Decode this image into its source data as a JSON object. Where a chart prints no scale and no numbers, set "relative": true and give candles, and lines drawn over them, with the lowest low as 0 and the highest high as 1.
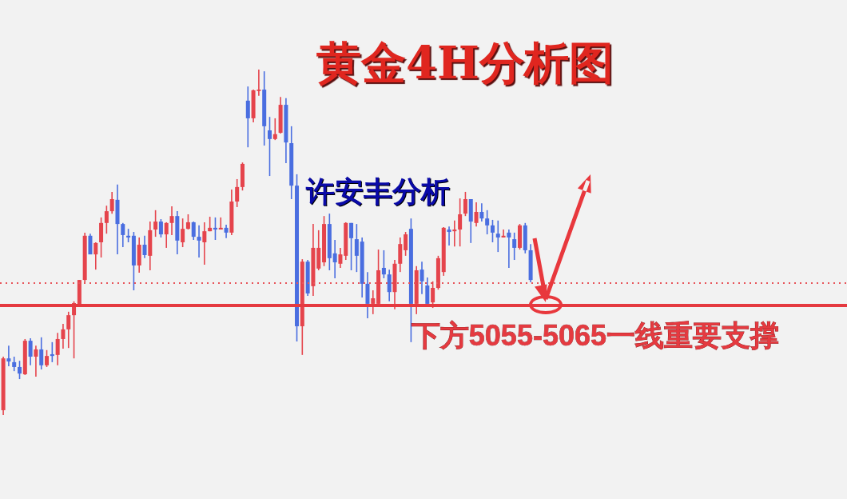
{
  "chart_data": {
    "type": "candlestick",
    "title": "黄金4H分析图",
    "annotations": [
      "许安丰分析"
    ],
    "relative": true,
    "categories": [
      null,
      null,
      null,
      null,
      null,
      null,
      null,
      null,
      null,
      null,
      null,
      null,
      null,
      null,
      null,
      null,
      null,
      null,
      null,
      null,
      null,
      null,
      null,
      null,
      null,
      null,
      null,
      null,
      null,
      null,
      null,
      null,
      null,
      null,
      null,
      null,
      null,
      null,
      null,
      null,
      null,
      null,
      null,
      null,
      null,
      null,
      null,
      null,
      null,
      null,
      null,
      null,
      null,
      null,
      null,
      null,
      null,
      null,
      null,
      null,
      null,
      null,
      null,
      null,
      null,
      null,
      null,
      null,
      null,
      null,
      null,
      null,
      null,
      null,
      null,
      null,
      null,
      null,
      null,
      null,
      null,
      null,
      null,
      null,
      null,
      null,
      null,
      null,
      null,
      null,
      null,
      null,
      null,
      null,
      null,
      null,
      null,
      null
    ],
    "ohlc": [
      [
        0.014,
        0.169,
        0,
        0.164
      ],
      [
        0.164,
        0.201,
        0.141,
        0.155
      ],
      [
        0.153,
        0.169,
        0.127,
        0.139
      ],
      [
        0.139,
        0.157,
        0.104,
        0.12
      ],
      [
        0.118,
        0.22,
        0.116,
        0.215
      ],
      [
        0.215,
        0.222,
        0.144,
        0.169
      ],
      [
        0.169,
        0.201,
        0.111,
        0.19
      ],
      [
        0.19,
        0.225,
        0.132,
        0.144
      ],
      [
        0.144,
        0.188,
        0.139,
        0.171
      ],
      [
        0.176,
        0.211,
        0.153,
        0.171
      ],
      [
        0.174,
        0.238,
        0.144,
        0.22
      ],
      [
        0.22,
        0.264,
        0.192,
        0.248
      ],
      [
        0.248,
        0.299,
        0.194,
        0.289
      ],
      [
        0.289,
        0.329,
        0.164,
        0.324
      ],
      [
        0.317,
        0.391,
        0.317,
        0.391
      ],
      [
        0.391,
        0.528,
        0.382,
        0.519
      ],
      [
        0.519,
        0.525,
        0.465,
        0.465
      ],
      [
        0.465,
        0.5,
        0.421,
        0.498
      ],
      [
        0.5,
        0.572,
        0.456,
        0.556
      ],
      [
        0.556,
        0.606,
        0.525,
        0.59
      ],
      [
        0.59,
        0.646,
        0.583,
        0.625
      ],
      [
        0.623,
        0.667,
        0.465,
        0.553
      ],
      [
        0.553,
        0.556,
        0.486,
        0.521
      ],
      [
        0.519,
        0.539,
        0.5,
        0.514
      ],
      [
        0.519,
        0.53,
        0.361,
        0.433
      ],
      [
        0.433,
        0.514,
        0.412,
        0.493
      ],
      [
        0.493,
        0.519,
        0.454,
        0.463
      ],
      [
        0.461,
        0.56,
        0.419,
        0.535
      ],
      [
        0.537,
        0.593,
        0.516,
        0.56
      ],
      [
        0.56,
        0.567,
        0.514,
        0.523
      ],
      [
        0.523,
        0.558,
        0.484,
        0.556
      ],
      [
        0.556,
        0.604,
        0.521,
        0.576
      ],
      [
        0.576,
        0.59,
        0.465,
        0.505
      ],
      [
        0.5,
        0.569,
        0.486,
        0.539
      ],
      [
        0.539,
        0.581,
        0.537,
        0.558
      ],
      [
        0.558,
        0.56,
        0.507,
        0.516
      ],
      [
        0.516,
        0.549,
        0.456,
        0.505
      ],
      [
        0.5,
        0.558,
        0.435,
        0.532
      ],
      [
        0.532,
        0.574,
        0.532,
        0.542
      ],
      [
        0.542,
        0.572,
        0.507,
        0.537
      ],
      [
        0.537,
        0.572,
        0.537,
        0.542
      ],
      [
        0.542,
        0.551,
        0.512,
        0.528
      ],
      [
        0.528,
        0.653,
        0.521,
        0.618
      ],
      [
        0.618,
        0.683,
        0.602,
        0.66
      ],
      [
        0.66,
        0.731,
        0.65,
        0.727
      ],
      [
        0.91,
        0.951,
        0.775,
        0.859
      ],
      [
        0.859,
        0.942,
        0.847,
        0.94
      ],
      [
        0.938,
        1,
        0.924,
        0.942
      ],
      [
        0.942,
        0.995,
        0.78,
        0.836
      ],
      [
        0.824,
        0.863,
        0.692,
        0.799
      ],
      [
        0.799,
        0.859,
        0.796,
        0.813
      ],
      [
        0.817,
        0.921,
        0.815,
        0.898
      ],
      [
        0.898,
        0.917,
        0.729,
        0.789
      ],
      [
        0.787,
        0.836,
        0.625,
        0.664
      ],
      [
        0.664,
        0.697,
        0.213,
        0.257
      ],
      [
        0.257,
        0.451,
        0.174,
        0.444
      ],
      [
        0.444,
        0.449,
        0.345,
        0.352
      ],
      [
        0.373,
        0.553,
        0.345,
        0.484
      ],
      [
        0.424,
        0.535,
        0.419,
        0.484
      ],
      [
        0.442,
        0.576,
        0.431,
        0.553
      ],
      [
        0.553,
        0.583,
        0.419,
        0.454
      ],
      [
        0.468,
        0.507,
        0.396,
        0.442
      ],
      [
        0.438,
        0.484,
        0.426,
        0.465
      ],
      [
        0.461,
        0.558,
        0.449,
        0.556
      ],
      [
        0.556,
        0.556,
        0.419,
        0.512
      ],
      [
        0.509,
        0.553,
        0.414,
        0.461
      ],
      [
        0.502,
        0.514,
        0.34,
        0.38
      ],
      [
        0.38,
        0.414,
        0.28,
        0.322
      ],
      [
        0.322,
        0.361,
        0.292,
        0.338
      ],
      [
        0.322,
        0.479,
        0.315,
        0.419
      ],
      [
        0.426,
        0.477,
        0.396,
        0.407
      ],
      [
        0.407,
        0.421,
        0.329,
        0.356
      ],
      [
        0.356,
        0.449,
        0.306,
        0.438
      ],
      [
        0.438,
        0.514,
        0.414,
        0.495
      ],
      [
        0.477,
        0.53,
        0.461,
        0.523
      ],
      [
        0.539,
        0.569,
        0.211,
        0.322
      ],
      [
        0.322,
        0.431,
        0.292,
        0.419
      ],
      [
        0.421,
        0.444,
        0.35,
        0.387
      ],
      [
        0.375,
        0.398,
        0.317,
        0.322
      ],
      [
        0.326,
        0.387,
        0.31,
        0.368
      ],
      [
        0.368,
        0.461,
        0.363,
        0.454
      ],
      [
        0.414,
        0.544,
        0.403,
        0.542
      ],
      [
        0.537,
        0.546,
        0.491,
        0.53
      ],
      [
        0.532,
        0.563,
        0.488,
        0.537
      ],
      [
        0.537,
        0.627,
        0.488,
        0.581
      ],
      [
        0.583,
        0.646,
        0.576,
        0.625
      ],
      [
        0.625,
        0.625,
        0.498,
        0.56
      ],
      [
        0.556,
        0.616,
        0.546,
        0.588
      ],
      [
        0.588,
        0.613,
        0.56,
        0.569
      ],
      [
        0.569,
        0.593,
        0.523,
        0.549
      ],
      [
        0.549,
        0.565,
        0.5,
        0.528
      ],
      [
        0.525,
        0.563,
        0.472,
        0.514
      ],
      [
        0.514,
        0.537,
        0.514,
        0.519
      ],
      [
        0.528,
        0.537,
        0.426,
        0.514
      ],
      [
        0.509,
        0.528,
        0.449,
        0.484
      ],
      [
        0.484,
        0.553,
        0.479,
        0.549
      ],
      [
        0.549,
        0.556,
        0.468,
        0.477
      ],
      [
        0.477,
        0.495,
        0.384,
        0.391
      ]
    ],
    "colors": [
      "#e5444c",
      "#4a6ee0",
      "#4a6ee0",
      "#4a6ee0",
      "#e5444c",
      "#4a6ee0",
      "#e5444c",
      "#4a6ee0",
      "#e5444c",
      "#4a6ee0",
      "#e5444c",
      "#e5444c",
      "#e5444c",
      "#e5444c",
      "#e5444c",
      "#e5444c",
      "#4a6ee0",
      "#e5444c",
      "#e5444c",
      "#e5444c",
      "#e5444c",
      "#4a6ee0",
      "#4a6ee0",
      "#4a6ee0",
      "#4a6ee0",
      "#e5444c",
      "#4a6ee0",
      "#e5444c",
      "#e5444c",
      "#4a6ee0",
      "#e5444c",
      "#e5444c",
      "#4a6ee0",
      "#e5444c",
      "#e5444c",
      "#4a6ee0",
      "#4a6ee0",
      "#e5444c",
      "#e5444c",
      "#4a6ee0",
      "#e5444c",
      "#4a6ee0",
      "#e5444c",
      "#e5444c",
      "#e5444c",
      "#4a6ee0",
      "#e5444c",
      "#e5444c",
      "#4a6ee0",
      "#4a6ee0",
      "#e5444c",
      "#e5444c",
      "#4a6ee0",
      "#4a6ee0",
      "#4a6ee0",
      "#e5444c",
      "#4a6ee0",
      "#e5444c",
      "#e5444c",
      "#e5444c",
      "#4a6ee0",
      "#4a6ee0",
      "#e5444c",
      "#e5444c",
      "#4a6ee0",
      "#4a6ee0",
      "#4a6ee0",
      "#4a6ee0",
      "#e5444c",
      "#e5444c",
      "#4a6ee0",
      "#4a6ee0",
      "#e5444c",
      "#e5444c",
      "#e5444c",
      "#4a6ee0",
      "#e5444c",
      "#4a6ee0",
      "#4a6ee0",
      "#e5444c",
      "#e5444c",
      "#e5444c",
      "#4a6ee0",
      "#e5444c",
      "#e5444c",
      "#e5444c",
      "#4a6ee0",
      "#e5444c",
      "#4a6ee0",
      "#4a6ee0",
      "#4a6ee0",
      "#4a6ee0",
      "#e5444c",
      "#4a6ee0",
      "#4a6ee0",
      "#e5444c",
      "#4a6ee0",
      "#4a6ee0"
    ],
    "ref_lines": [
      {
        "axis": "y",
        "value": 0.382,
        "color": "#e8545a",
        "line_style": "dotted"
      },
      {
        "axis": "y",
        "value": 0.317,
        "label": "下方5055-5065一线重要支撑",
        "color": "#e53a40",
        "line_style": "solid"
      }
    ]
  }
}
